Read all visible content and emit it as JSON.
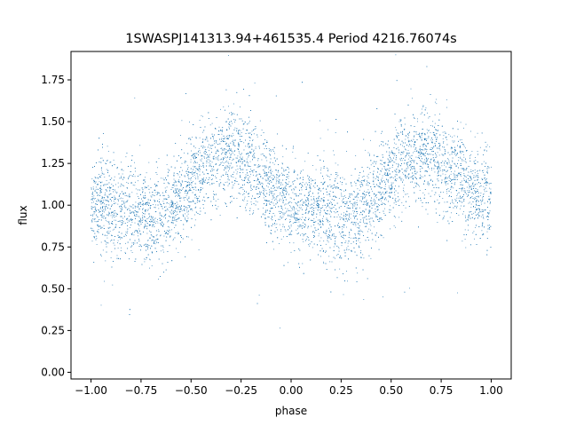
{
  "chart_data": {
    "type": "scatter",
    "title": "1SWASPJ141313.94+461535.4 Period 4216.76074s",
    "xlabel": "phase",
    "ylabel": "flux",
    "xlim": [
      -1.1,
      1.1
    ],
    "ylim": [
      -0.04,
      1.92
    ],
    "grid": false,
    "marker_color": "#1f77b4",
    "x_ticks": [
      -1.0,
      -0.75,
      -0.5,
      -0.25,
      0.0,
      0.25,
      0.5,
      0.75,
      1.0
    ],
    "x_tick_labels": [
      "−1.00",
      "−0.75",
      "−0.50",
      "−0.25",
      "0.00",
      "0.25",
      "0.50",
      "0.75",
      "1.00"
    ],
    "y_ticks": [
      0.0,
      0.25,
      0.5,
      0.75,
      1.0,
      1.25,
      1.5,
      1.75
    ],
    "y_tick_labels": [
      "0.00",
      "0.25",
      "0.50",
      "0.75",
      "1.00",
      "1.25",
      "1.50",
      "1.75"
    ],
    "series": [
      {
        "x": [
          -0.95,
          -0.9,
          -0.85,
          -0.8,
          -0.75,
          -0.7,
          -0.65,
          -0.6,
          -0.55,
          -0.5,
          -0.45,
          -0.4,
          -0.35,
          -0.3,
          -0.25,
          -0.2,
          -0.15,
          -0.1,
          -0.05,
          0.0,
          0.05,
          0.1,
          0.15,
          0.2,
          0.25,
          0.3,
          0.35,
          0.4,
          0.45,
          0.5,
          0.55,
          0.6,
          0.65,
          0.7,
          0.75,
          0.8,
          0.85,
          0.9,
          0.95
        ],
        "y": [
          1.02,
          0.99,
          0.97,
          0.96,
          0.95,
          0.93,
          0.94,
          0.98,
          1.05,
          1.13,
          1.2,
          1.25,
          1.28,
          1.3,
          1.27,
          1.22,
          1.15,
          1.09,
          1.04,
          1.0,
          0.98,
          0.97,
          0.96,
          0.95,
          0.93,
          0.94,
          0.98,
          1.05,
          1.12,
          1.2,
          1.25,
          1.28,
          1.3,
          1.29,
          1.25,
          1.2,
          1.14,
          1.09,
          1.05
        ],
        "scatter_sd": 0.14,
        "points_shown": 9000
      }
    ]
  }
}
